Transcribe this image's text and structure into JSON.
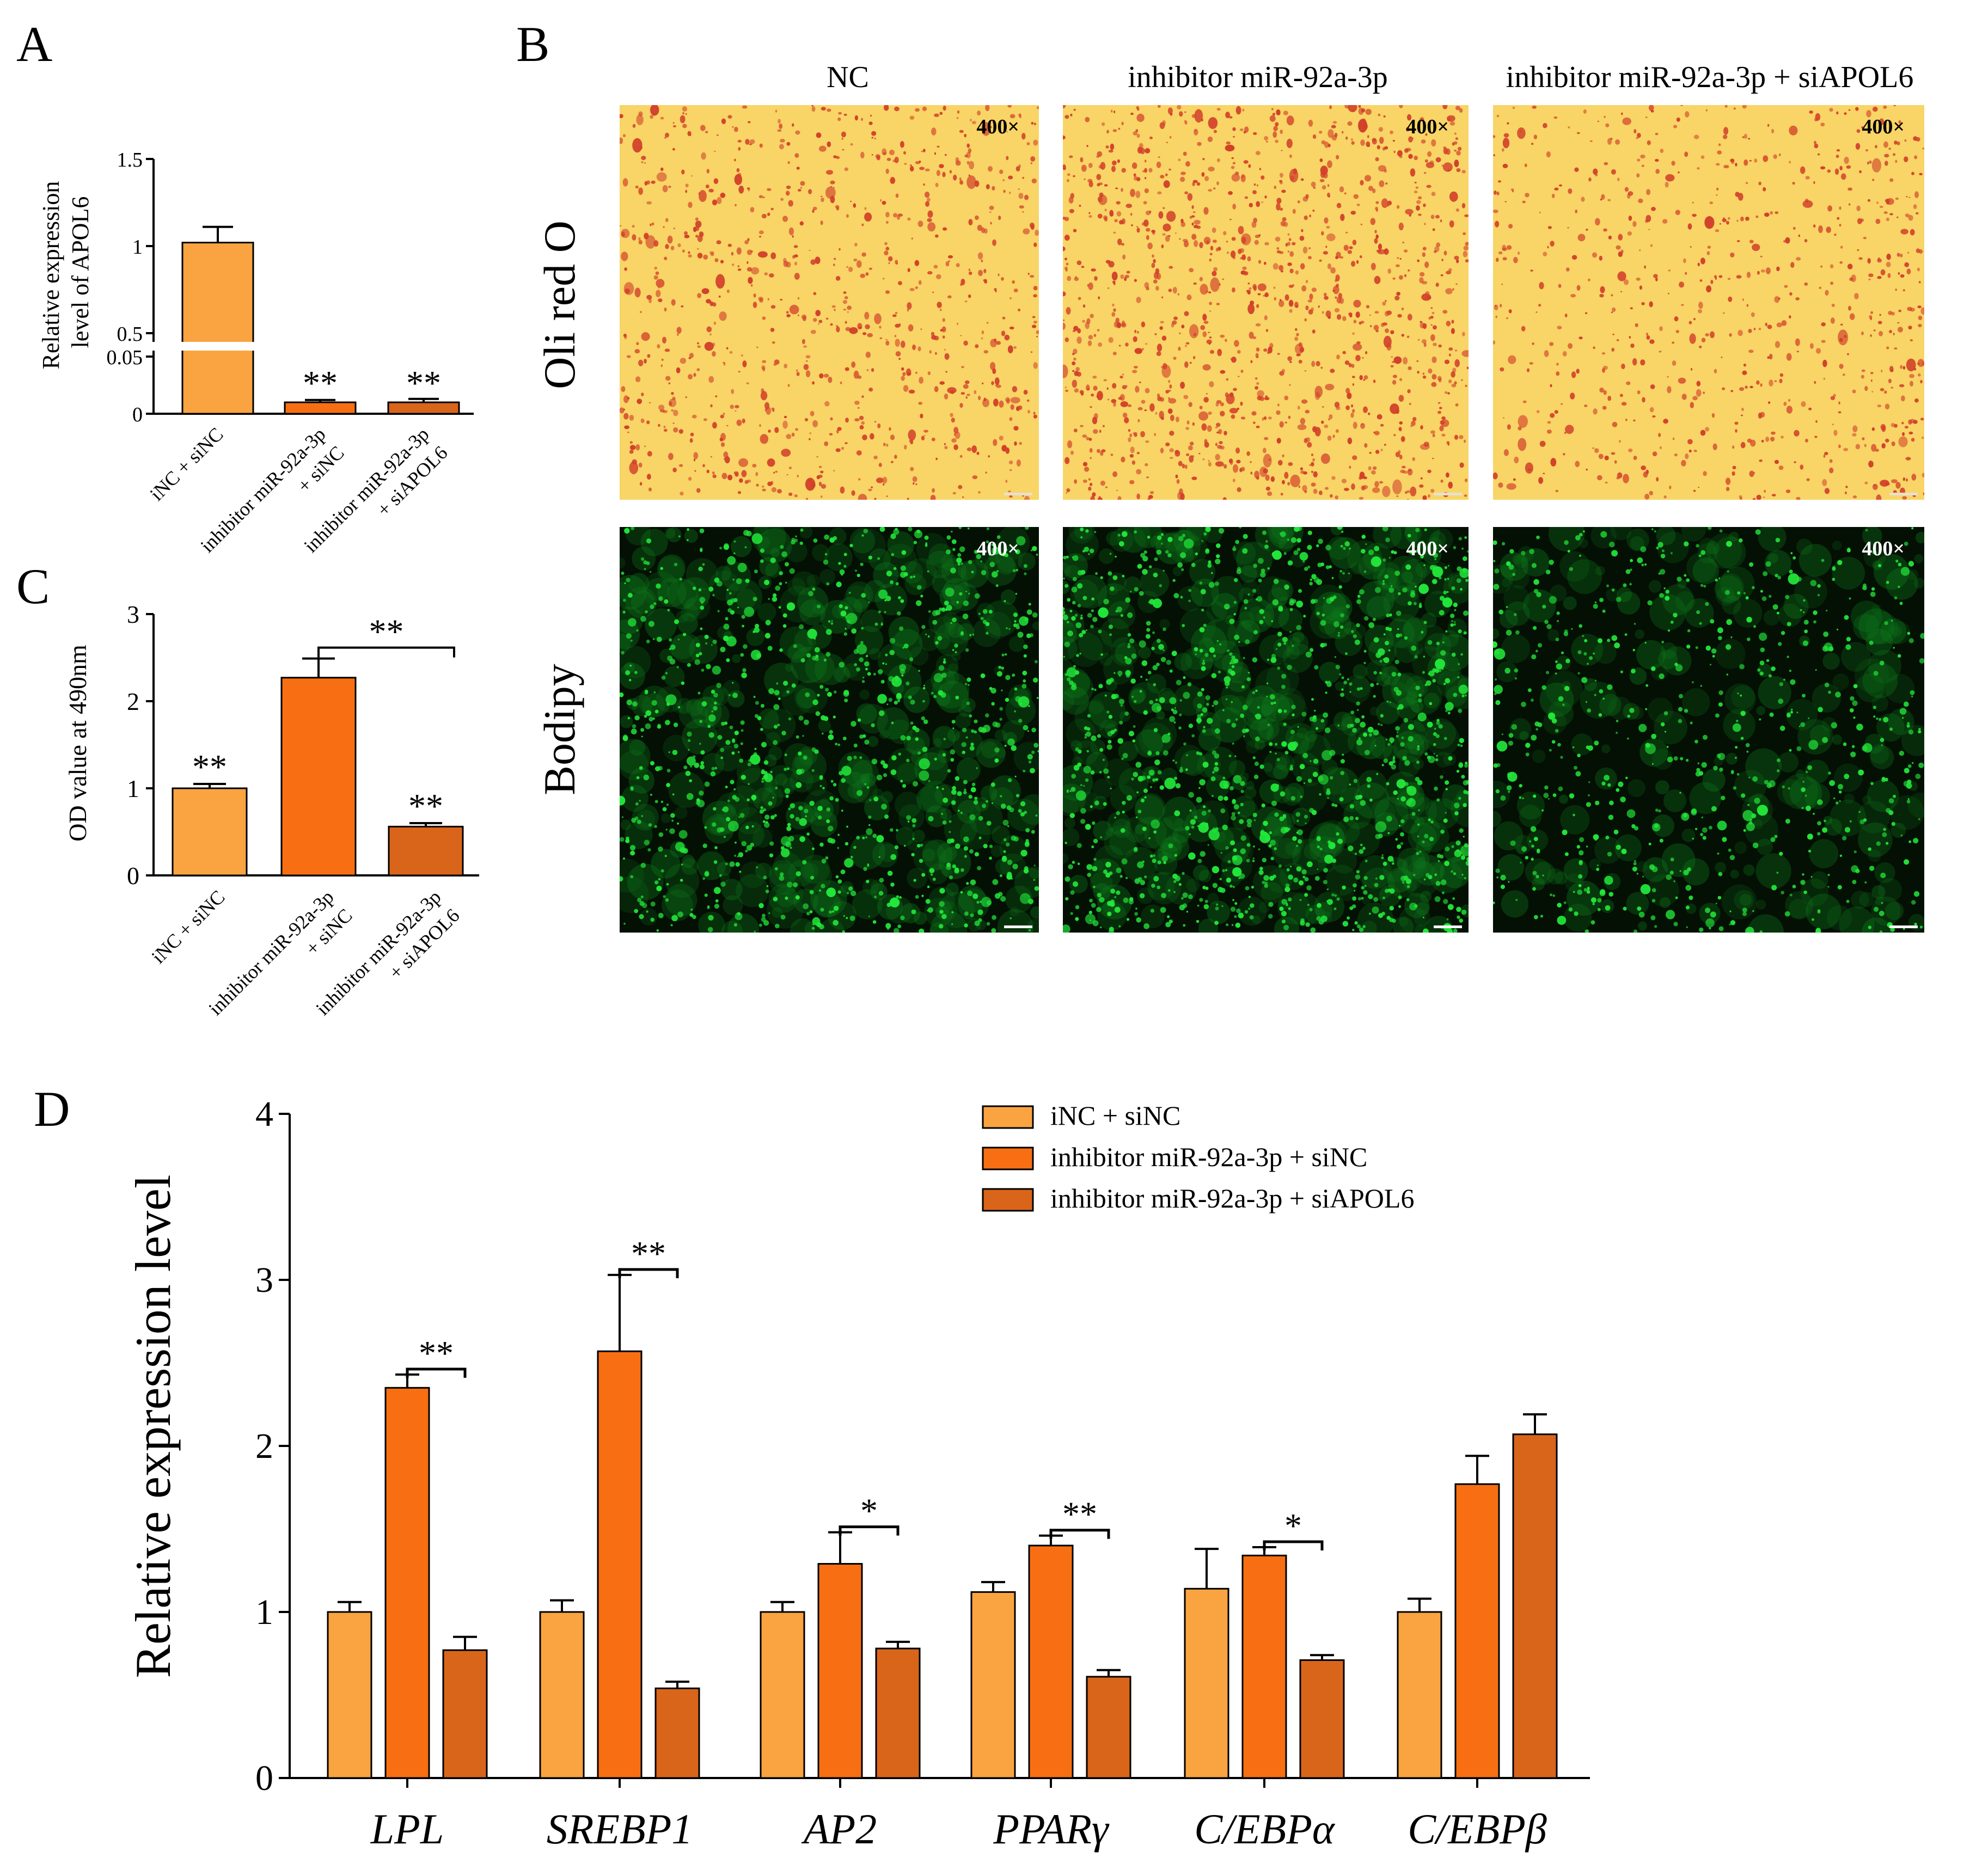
{
  "panel_letters": {
    "a": "A",
    "b": "B",
    "c": "C",
    "d": "D"
  },
  "colors": {
    "group1": "#F9A440",
    "group2": "#F76F12",
    "group3": "#D9651A",
    "oil_bg": "#F8D566",
    "oil_stain": "#D2402A",
    "bodipy_bg": "#041004",
    "bodipy_stain": "#22E83A"
  },
  "micrographs": {
    "columns": [
      "NC",
      "inhibitor miR-92a-3p",
      "inhibitor miR-92a-3p + siAPOL6"
    ],
    "rows": [
      "Oli red O",
      "Bodipy"
    ],
    "magnification": "400×"
  },
  "chart_data": [
    {
      "id": "A",
      "type": "bar",
      "ylabel": [
        "Relative expression",
        "level of APOL6"
      ],
      "axis_break": true,
      "lower_range": [
        0,
        0.05
      ],
      "upper_range": [
        0.5,
        1.5
      ],
      "lower_ticks": [
        "0",
        "0.05"
      ],
      "upper_ticks": [
        "0.5",
        "1",
        "1.5"
      ],
      "categories": [
        [
          "iNC + siNC"
        ],
        [
          "inhibitor miR-92a-3p",
          "+ siNC"
        ],
        [
          "inhibitor miR-92a-3p",
          "+ siAPOL6"
        ]
      ],
      "values": [
        1.02,
        0.01,
        0.01
      ],
      "errors": [
        0.09,
        0.002,
        0.003
      ],
      "significance": [
        "",
        "**",
        "**"
      ]
    },
    {
      "id": "C",
      "type": "bar",
      "ylabel": "OD value at 490nm",
      "ylim": [
        0,
        3
      ],
      "yticks": [
        "0",
        "1",
        "2",
        "3"
      ],
      "categories": [
        [
          "iNC + siNC"
        ],
        [
          "inhibitor miR-92a-3p",
          "+ siNC"
        ],
        [
          "inhibitor miR-92a-3p",
          "+ siAPOL6"
        ]
      ],
      "values": [
        1.0,
        2.27,
        0.56
      ],
      "errors": [
        0.05,
        0.22,
        0.04
      ],
      "significance": [
        "**",
        "",
        "**"
      ],
      "bracket": {
        "from": 1,
        "to": 2,
        "label": "**"
      }
    },
    {
      "id": "D",
      "type": "bar",
      "ylabel": "Relative expression level",
      "ylim": [
        0,
        4
      ],
      "yticks": [
        "0",
        "1",
        "2",
        "3",
        "4"
      ],
      "categories": [
        "LPL",
        "SREBP1",
        "AP2",
        "PPARγ",
        "C/EBPα",
        "C/EBPβ"
      ],
      "series": [
        {
          "name": "iNC + siNC",
          "values": [
            1.0,
            1.0,
            1.0,
            1.12,
            1.14,
            1.0
          ],
          "errors": [
            0.06,
            0.07,
            0.06,
            0.06,
            0.24,
            0.08
          ]
        },
        {
          "name": "inhibitor miR-92a-3p + siNC",
          "values": [
            2.35,
            2.57,
            1.29,
            1.4,
            1.34,
            1.77
          ],
          "errors": [
            0.08,
            0.46,
            0.19,
            0.06,
            0.05,
            0.17
          ]
        },
        {
          "name": "inhibitor miR-92a-3p + siAPOL6",
          "values": [
            0.77,
            0.54,
            0.78,
            0.61,
            0.71,
            2.07
          ],
          "errors": [
            0.08,
            0.04,
            0.04,
            0.04,
            0.03,
            0.12
          ]
        }
      ],
      "brackets": [
        {
          "category": 0,
          "label": "**"
        },
        {
          "category": 1,
          "label": "**"
        },
        {
          "category": 2,
          "label": "*"
        },
        {
          "category": 3,
          "label": "**"
        },
        {
          "category": 4,
          "label": "*"
        }
      ],
      "legend_position": "top-right"
    }
  ]
}
